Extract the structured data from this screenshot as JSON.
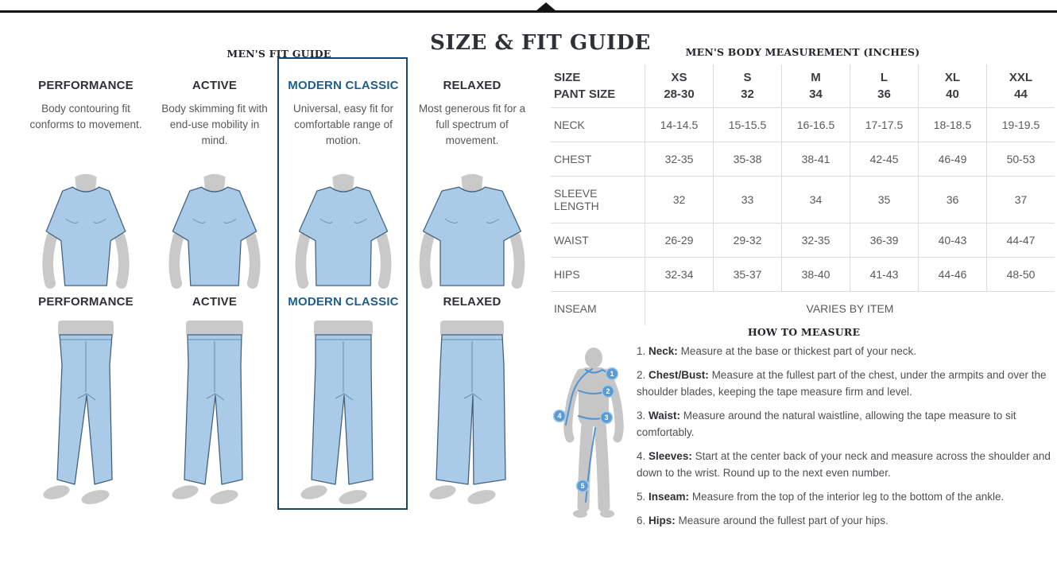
{
  "page": {
    "title": "SIZE & FIT GUIDE"
  },
  "colors": {
    "accent_blue_text": "#1d5d8f",
    "highlight_border": "#17466b",
    "garment_blue": "#a9cbe8",
    "garment_outline": "#44627e",
    "mannequin_gray": "#c9c9c9",
    "badge_blue": "#5b9bd5",
    "topbar_black": "#141414"
  },
  "fit_guide": {
    "heading": "MEN'S FIT GUIDE",
    "fits": [
      {
        "name": "PERFORMANCE",
        "description": "Body contouring fit conforms to movement.",
        "highlighted": false
      },
      {
        "name": "ACTIVE",
        "description": "Body skimming fit with end-use mobility in mind.",
        "highlighted": false
      },
      {
        "name": "MODERN CLASSIC",
        "description": "Universal, easy fit for comfortable range of motion.",
        "highlighted": true
      },
      {
        "name": "RELAXED",
        "description": "Most generous fit for a full spectrum of movement.",
        "highlighted": false
      }
    ]
  },
  "measurement_table": {
    "heading": "MEN'S BODY MEASUREMENT (INCHES)",
    "header": {
      "label_line1": "SIZE",
      "label_line2": "PANT SIZE",
      "sizes": [
        {
          "size": "XS",
          "pant": "28-30"
        },
        {
          "size": "S",
          "pant": "32"
        },
        {
          "size": "M",
          "pant": "34"
        },
        {
          "size": "L",
          "pant": "36"
        },
        {
          "size": "XL",
          "pant": "40"
        },
        {
          "size": "XXL",
          "pant": "44"
        }
      ]
    },
    "rows": [
      {
        "label": "NECK",
        "tall": false,
        "values": [
          "14-14.5",
          "15-15.5",
          "16-16.5",
          "17-17.5",
          "18-18.5",
          "19-19.5"
        ]
      },
      {
        "label": "CHEST",
        "tall": false,
        "values": [
          "32-35",
          "35-38",
          "38-41",
          "42-45",
          "46-49",
          "50-53"
        ]
      },
      {
        "label": "SLEEVE LENGTH",
        "tall": true,
        "values": [
          "32",
          "33",
          "34",
          "35",
          "36",
          "37"
        ]
      },
      {
        "label": "WAIST",
        "tall": false,
        "values": [
          "26-29",
          "29-32",
          "32-35",
          "36-39",
          "40-43",
          "44-47"
        ]
      },
      {
        "label": "HIPS",
        "tall": false,
        "values": [
          "32-34",
          "35-37",
          "38-40",
          "41-43",
          "44-46",
          "48-50"
        ]
      }
    ],
    "inseam_row": {
      "label": "INSEAM",
      "value": "VARIES BY ITEM"
    }
  },
  "how_to_measure": {
    "heading": "HOW TO MEASURE",
    "figure_markers": [
      "1",
      "2",
      "3",
      "4",
      "5"
    ],
    "steps": [
      {
        "num": "1.",
        "term": "Neck:",
        "text": "Measure at the base or thickest part of your neck."
      },
      {
        "num": "2.",
        "term": "Chest/Bust:",
        "text": "Measure at the fullest part of the chest, under the armpits and over the shoulder blades, keeping the tape measure firm and level."
      },
      {
        "num": "3.",
        "term": "Waist:",
        "text": "Measure around the natural waistline, allowing the tape measure to sit comfortably."
      },
      {
        "num": "4.",
        "term": "Sleeves:",
        "text": "Start at the center back of your neck and measure across the shoulder and down to the wrist. Round up to the next even number."
      },
      {
        "num": "5.",
        "term": "Inseam:",
        "text": "Measure from the top of the interior leg to the bottom of the ankle."
      },
      {
        "num": "6.",
        "term": "Hips:",
        "text": "Measure around the fullest part of your hips."
      }
    ]
  }
}
